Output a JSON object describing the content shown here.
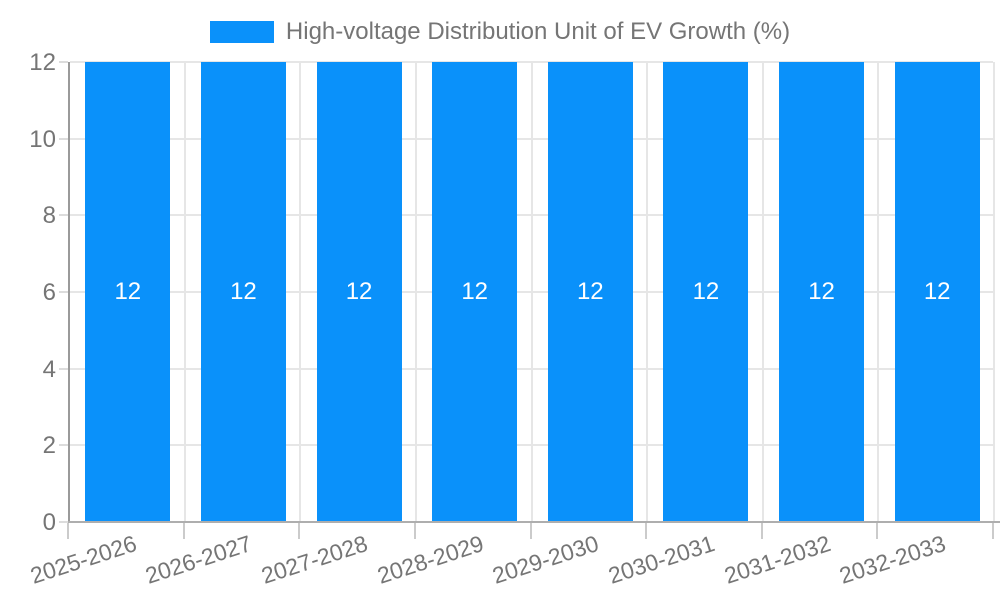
{
  "legend": {
    "label": "High-voltage Distribution Unit of EV Growth (%)"
  },
  "chart_data": {
    "type": "bar",
    "title": "High-voltage Distribution Unit of EV Growth (%)",
    "categories": [
      "2025-2026",
      "2026-2027",
      "2027-2028",
      "2028-2029",
      "2029-2030",
      "2030-2031",
      "2031-2032",
      "2032-2033"
    ],
    "values": [
      12,
      12,
      12,
      12,
      12,
      12,
      12,
      12
    ],
    "bar_labels": [
      "12",
      "12",
      "12",
      "12",
      "12",
      "12",
      "12",
      "12"
    ],
    "xlabel": "",
    "ylabel": "",
    "ylim": [
      0,
      12
    ],
    "y_ticks": [
      0,
      2,
      4,
      6,
      8,
      10,
      12
    ],
    "grid": true,
    "legend_position": "top-center"
  },
  "colors": {
    "bar": "#0a91fa",
    "bar_label": "#ffffff",
    "grid": "#e6e6e6",
    "axis": "#9a9a9a",
    "tick": "#cbcbcb",
    "text": "#757575",
    "background": "#ffffff"
  }
}
